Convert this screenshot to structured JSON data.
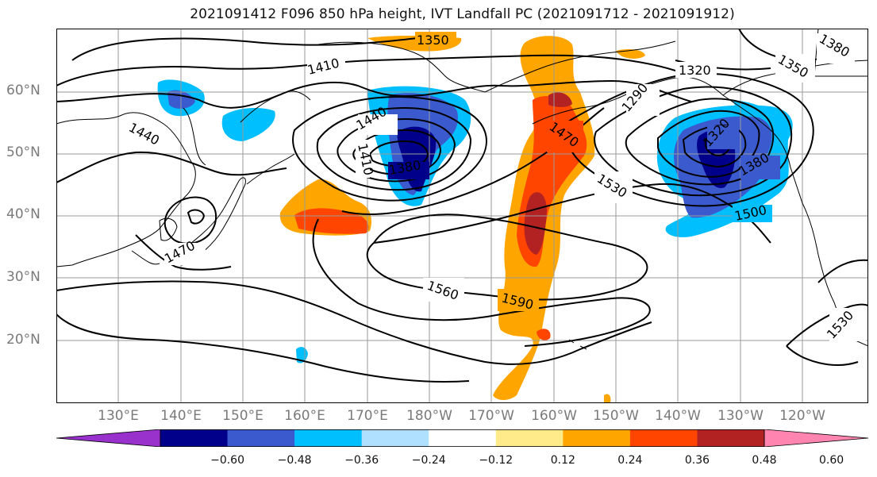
{
  "title": "2021091412 F096 850 hPa height, IVT Landfall PC (2021091712 - 2021091912)",
  "lat_labels": [
    "60°N",
    "50°N",
    "40°N",
    "30°N",
    "20°N"
  ],
  "lon_labels": [
    "130°E",
    "140°E",
    "150°E",
    "160°E",
    "170°E",
    "180°W",
    "170°W",
    "160°W",
    "150°W",
    "140°W",
    "130°W",
    "120°W"
  ],
  "contour_labels": [
    "1350",
    "1410",
    "1440",
    "1440",
    "1410",
    "1380",
    "1470",
    "1470",
    "1530",
    "1290",
    "1320",
    "1350",
    "1380",
    "1320",
    "1380",
    "1500",
    "1560",
    "1590",
    "1530"
  ],
  "colorbar": {
    "colors": [
      "#9932cc",
      "#00008b",
      "#3a5acd",
      "#00bfff",
      "#b0e0ff",
      "#ffffff",
      "#ffeb8a",
      "#ffa500",
      "#ff4500",
      "#b22222",
      "#ff85b0"
    ],
    "ticks": [
      "−0.60",
      "−0.48",
      "−0.36",
      "−0.24",
      "−0.12",
      "0.12",
      "0.24",
      "0.36",
      "0.48",
      "0.60"
    ]
  }
}
